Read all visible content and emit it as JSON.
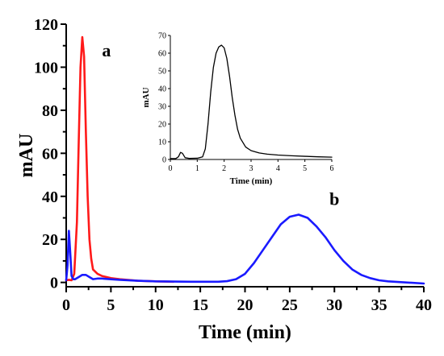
{
  "chart_data": [
    {
      "type": "line",
      "title": "",
      "xlabel": "Time (min)",
      "ylabel": "mAU",
      "xlim": [
        0,
        40
      ],
      "ylim": [
        -2,
        120
      ],
      "xticks": [
        0,
        5,
        10,
        15,
        20,
        25,
        30,
        35,
        40
      ],
      "yticks": [
        0,
        20,
        40,
        60,
        80,
        100,
        120
      ],
      "grid": false,
      "annotations": [
        {
          "text": "a",
          "x": 4.5,
          "y": 105
        },
        {
          "text": "b",
          "x": 30,
          "y": 36
        }
      ],
      "series": [
        {
          "color": "#ff1a1a",
          "x": [
            0.0,
            0.3,
            0.6,
            0.9,
            1.2,
            1.4,
            1.6,
            1.8,
            2.0,
            2.2,
            2.4,
            2.6,
            2.8,
            3.0,
            3.5,
            4.0,
            5.0,
            6.0,
            8.0,
            10.0,
            12.0
          ],
          "y": [
            1.0,
            1.2,
            1.0,
            4.0,
            28.0,
            65.0,
            100.0,
            114.0,
            105.0,
            70.0,
            40.0,
            20.0,
            11.0,
            6.0,
            4.0,
            3.0,
            2.0,
            1.5,
            0.8,
            0.5,
            0.3
          ]
        },
        {
          "color": "#1a1aff",
          "x": [
            0.0,
            0.15,
            0.3,
            0.45,
            0.6,
            0.8,
            1.0,
            1.4,
            1.8,
            2.2,
            2.6,
            3.0,
            3.5,
            4.0,
            5.0,
            6.0,
            8.0,
            10.0,
            14.0,
            17.0,
            18.0,
            19.0,
            20.0,
            21.0,
            22.0,
            23.0,
            24.0,
            25.0,
            26.0,
            27.0,
            28.0,
            29.0,
            30.0,
            31.0,
            32.0,
            33.0,
            34.0,
            35.0,
            36.0,
            38.0,
            40.0
          ],
          "y": [
            1.0,
            8.0,
            24.0,
            14.0,
            3.0,
            1.5,
            1.5,
            2.5,
            3.5,
            3.5,
            2.5,
            1.5,
            1.8,
            1.8,
            1.5,
            1.2,
            0.8,
            0.5,
            0.3,
            0.3,
            0.6,
            1.5,
            4.0,
            9.0,
            15.0,
            21.0,
            27.0,
            30.5,
            31.5,
            30.0,
            26.0,
            21.0,
            15.0,
            10.0,
            6.0,
            3.5,
            2.0,
            1.0,
            0.5,
            0.0,
            -0.5
          ]
        }
      ]
    },
    {
      "type": "line",
      "title": "",
      "xlabel": "Time (min)",
      "ylabel": "mAU",
      "xlim": [
        0,
        6
      ],
      "ylim": [
        0,
        70
      ],
      "xticks": [
        0,
        1,
        2,
        3,
        4,
        5,
        6
      ],
      "yticks": [
        0,
        10,
        20,
        30,
        40,
        50,
        60,
        70
      ],
      "grid": false,
      "series": [
        {
          "color": "#000000",
          "x": [
            0.0,
            0.2,
            0.3,
            0.38,
            0.45,
            0.55,
            0.7,
            1.0,
            1.2,
            1.3,
            1.4,
            1.5,
            1.6,
            1.7,
            1.8,
            1.9,
            2.0,
            2.1,
            2.2,
            2.3,
            2.4,
            2.5,
            2.6,
            2.8,
            3.0,
            3.3,
            3.6,
            4.0,
            4.5,
            5.0,
            5.5,
            6.0
          ],
          "y": [
            0.5,
            0.5,
            1.5,
            4.0,
            3.5,
            1.0,
            0.6,
            0.7,
            1.5,
            6.0,
            20.0,
            38.0,
            52.0,
            60.0,
            63.5,
            64.5,
            63.0,
            57.0,
            47.0,
            35.0,
            25.0,
            17.0,
            12.0,
            7.0,
            5.0,
            3.7,
            3.0,
            2.5,
            2.1,
            1.8,
            1.5,
            1.3
          ]
        }
      ]
    }
  ]
}
